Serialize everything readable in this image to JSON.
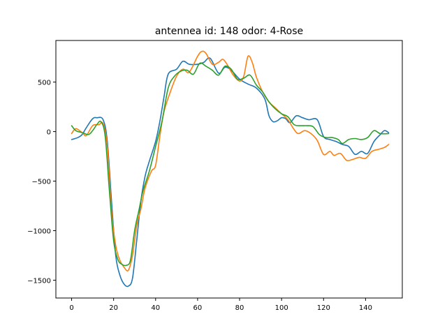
{
  "chart_data": {
    "type": "line",
    "title": "antennea id: 148    odor: 4-Rose",
    "xlabel": "",
    "ylabel": "",
    "xlim": [
      -7.5,
      157.5
    ],
    "ylim": [
      -1680,
      920
    ],
    "xticks": [
      0,
      20,
      40,
      60,
      80,
      100,
      120,
      140
    ],
    "yticks": [
      -1500,
      -1000,
      -500,
      0,
      500
    ],
    "grid": false,
    "legend": "none",
    "series": [
      {
        "color": "#1f77b4",
        "points": [
          [
            0,
            -80
          ],
          [
            3,
            -60
          ],
          [
            5,
            -30
          ],
          [
            7,
            40
          ],
          [
            10,
            130
          ],
          [
            12,
            140
          ],
          [
            15,
            120
          ],
          [
            17,
            -100
          ],
          [
            19,
            -700
          ],
          [
            21,
            -1250
          ],
          [
            23,
            -1450
          ],
          [
            25,
            -1540
          ],
          [
            27,
            -1560
          ],
          [
            29,
            -1480
          ],
          [
            31,
            -1100
          ],
          [
            33,
            -700
          ],
          [
            35,
            -450
          ],
          [
            37,
            -300
          ],
          [
            40,
            -100
          ],
          [
            42,
            100
          ],
          [
            44,
            350
          ],
          [
            46,
            580
          ],
          [
            50,
            630
          ],
          [
            53,
            710
          ],
          [
            56,
            680
          ],
          [
            60,
            680
          ],
          [
            63,
            700
          ],
          [
            66,
            740
          ],
          [
            70,
            590
          ],
          [
            73,
            650
          ],
          [
            76,
            620
          ],
          [
            80,
            530
          ],
          [
            84,
            480
          ],
          [
            88,
            440
          ],
          [
            92,
            330
          ],
          [
            94,
            160
          ],
          [
            96,
            100
          ],
          [
            98,
            110
          ],
          [
            100,
            140
          ],
          [
            102,
            130
          ],
          [
            104,
            90
          ],
          [
            107,
            160
          ],
          [
            110,
            140
          ],
          [
            113,
            120
          ],
          [
            117,
            120
          ],
          [
            120,
            -50
          ],
          [
            123,
            -80
          ],
          [
            126,
            -100
          ],
          [
            129,
            -130
          ],
          [
            132,
            -150
          ],
          [
            135,
            -230
          ],
          [
            138,
            -200
          ],
          [
            141,
            -220
          ],
          [
            144,
            -100
          ],
          [
            147,
            -30
          ],
          [
            149,
            10
          ],
          [
            151,
            -10
          ]
        ]
      },
      {
        "color": "#ff7f0e",
        "points": [
          [
            0,
            -20
          ],
          [
            2,
            30
          ],
          [
            5,
            -10
          ],
          [
            7,
            -40
          ],
          [
            10,
            60
          ],
          [
            13,
            70
          ],
          [
            15,
            80
          ],
          [
            17,
            -150
          ],
          [
            19,
            -800
          ],
          [
            21,
            -1150
          ],
          [
            23,
            -1300
          ],
          [
            25,
            -1370
          ],
          [
            27,
            -1400
          ],
          [
            29,
            -1250
          ],
          [
            31,
            -950
          ],
          [
            33,
            -780
          ],
          [
            35,
            -570
          ],
          [
            38,
            -400
          ],
          [
            40,
            -340
          ],
          [
            42,
            -50
          ],
          [
            44,
            200
          ],
          [
            47,
            400
          ],
          [
            50,
            560
          ],
          [
            53,
            630
          ],
          [
            56,
            600
          ],
          [
            60,
            760
          ],
          [
            62,
            810
          ],
          [
            64,
            790
          ],
          [
            67,
            680
          ],
          [
            70,
            700
          ],
          [
            72,
            730
          ],
          [
            74,
            680
          ],
          [
            77,
            570
          ],
          [
            80,
            510
          ],
          [
            82,
            560
          ],
          [
            84,
            760
          ],
          [
            86,
            700
          ],
          [
            88,
            550
          ],
          [
            91,
            400
          ],
          [
            94,
            300
          ],
          [
            97,
            240
          ],
          [
            100,
            180
          ],
          [
            103,
            120
          ],
          [
            106,
            20
          ],
          [
            108,
            -20
          ],
          [
            111,
            10
          ],
          [
            114,
            -20
          ],
          [
            117,
            -90
          ],
          [
            120,
            -230
          ],
          [
            123,
            -200
          ],
          [
            125,
            -240
          ],
          [
            128,
            -220
          ],
          [
            131,
            -290
          ],
          [
            134,
            -280
          ],
          [
            137,
            -260
          ],
          [
            140,
            -270
          ],
          [
            143,
            -200
          ],
          [
            146,
            -180
          ],
          [
            149,
            -160
          ],
          [
            151,
            -130
          ]
        ]
      },
      {
        "color": "#2ca02c",
        "points": [
          [
            0,
            60
          ],
          [
            2,
            10
          ],
          [
            5,
            -10
          ],
          [
            8,
            -30
          ],
          [
            10,
            10
          ],
          [
            12,
            70
          ],
          [
            14,
            100
          ],
          [
            16,
            -50
          ],
          [
            18,
            -600
          ],
          [
            20,
            -1100
          ],
          [
            22,
            -1290
          ],
          [
            24,
            -1340
          ],
          [
            26,
            -1350
          ],
          [
            28,
            -1300
          ],
          [
            30,
            -1000
          ],
          [
            32,
            -800
          ],
          [
            34,
            -600
          ],
          [
            37,
            -400
          ],
          [
            40,
            -150
          ],
          [
            43,
            100
          ],
          [
            46,
            440
          ],
          [
            49,
            560
          ],
          [
            52,
            610
          ],
          [
            55,
            620
          ],
          [
            58,
            580
          ],
          [
            61,
            690
          ],
          [
            64,
            660
          ],
          [
            67,
            620
          ],
          [
            70,
            570
          ],
          [
            73,
            660
          ],
          [
            76,
            630
          ],
          [
            79,
            530
          ],
          [
            82,
            540
          ],
          [
            85,
            570
          ],
          [
            88,
            470
          ],
          [
            91,
            400
          ],
          [
            94,
            300
          ],
          [
            97,
            230
          ],
          [
            100,
            180
          ],
          [
            103,
            150
          ],
          [
            106,
            70
          ],
          [
            109,
            60
          ],
          [
            112,
            60
          ],
          [
            115,
            50
          ],
          [
            118,
            -30
          ],
          [
            121,
            -60
          ],
          [
            124,
            -60
          ],
          [
            127,
            -80
          ],
          [
            129,
            -120
          ],
          [
            132,
            -80
          ],
          [
            135,
            -70
          ],
          [
            138,
            -80
          ],
          [
            141,
            -60
          ],
          [
            144,
            10
          ],
          [
            147,
            -20
          ],
          [
            151,
            -20
          ]
        ]
      }
    ]
  }
}
